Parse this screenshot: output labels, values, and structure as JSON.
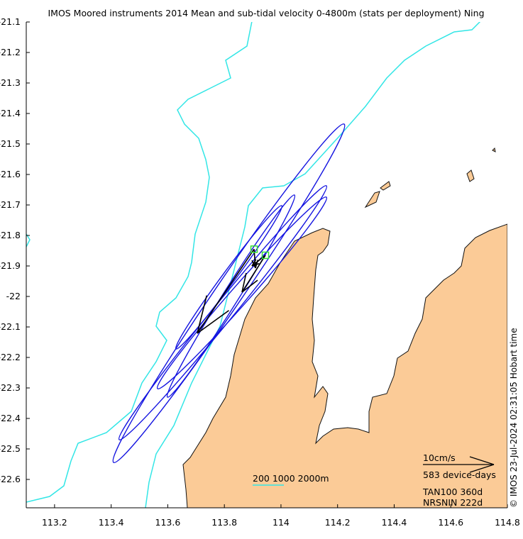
{
  "title": "IMOS Moored instruments 2014 Mean and sub-tidal velocity 0-4800m (stats per deployment) Ning",
  "axes": {
    "x_ticks": [
      "113.2",
      "113.4",
      "113.6",
      "113.8",
      "114",
      "114.2",
      "114.4",
      "114.6",
      "114.8"
    ],
    "x_values": [
      113.2,
      113.4,
      113.6,
      113.8,
      114.0,
      114.2,
      114.4,
      114.6,
      114.8
    ],
    "y_ticks": [
      "-21.1",
      "-21.2",
      "-21.3",
      "-21.4",
      "-21.5",
      "-21.6",
      "-21.7",
      "-21.8",
      "-21.9",
      "-22",
      "-22.1",
      "-22.2",
      "-22.3",
      "-22.4",
      "-22.5",
      "-22.6"
    ],
    "y_values": [
      -21.1,
      -21.2,
      -21.3,
      -21.4,
      -21.5,
      -21.6,
      -21.7,
      -21.8,
      -21.9,
      -22.0,
      -22.1,
      -22.2,
      -22.3,
      -22.4,
      -22.5,
      -22.6
    ],
    "xlim": [
      113.1,
      114.8
    ],
    "ylim": [
      -22.693,
      -21.1
    ]
  },
  "isobath_legend": "200 1000 2000m",
  "scale": {
    "speed_label": "10cm/s",
    "device_days": "583 device-days"
  },
  "stations": [
    {
      "name": "TAN100",
      "days": "360d",
      "label": "TAN100 360d",
      "lon": 113.905,
      "lat": -21.845
    },
    {
      "name": "NRSNIN",
      "days": "222d",
      "label": "NRSNIN 222d",
      "lon": 113.945,
      "lat": -21.865
    }
  ],
  "copyright": "© IMOS 23-Jul-2024 02:31:05 Hobart time",
  "colors": {
    "land": "#fbcb97",
    "isobath": "#33e6e6",
    "ellipse": "#1414e0",
    "marker": "#33dd33",
    "arrow": "#000000",
    "isobath_legend": "#33e6e6"
  }
}
